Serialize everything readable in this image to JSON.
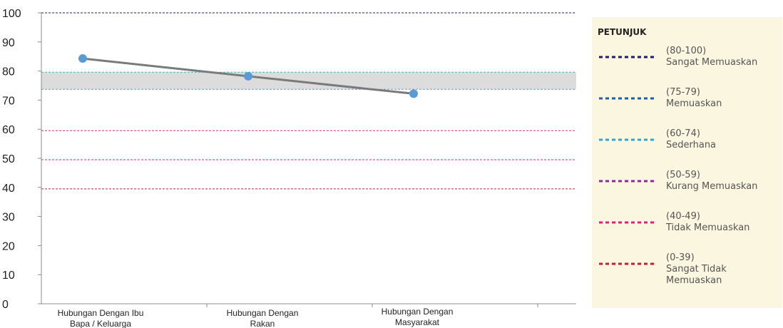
{
  "chart_data": {
    "type": "line",
    "title": "",
    "xlabel": "",
    "ylabel": "",
    "ylim": [
      0,
      100
    ],
    "yticks": [
      0,
      10,
      20,
      30,
      40,
      50,
      60,
      70,
      80,
      90,
      100
    ],
    "categories": [
      "Hubungan Dengan Ibu Bapa / Keluarga",
      "Hubungan Dengan Rakan",
      "Hubungan Dengan Masyarakat"
    ],
    "series": [
      {
        "values": [
          84.3,
          78.2,
          72.2
        ],
        "color": "#7a7a7a",
        "marker_color": "#5b9bd5"
      }
    ],
    "shaded_band": {
      "from": 73.7,
      "to": 79.6,
      "color": "#dcdcdc"
    },
    "threshold_lines": [
      {
        "value": 100,
        "color": "#1f1a6b"
      },
      {
        "value": 79.6,
        "color": "#3fb0c9"
      },
      {
        "value": 73.7,
        "color": "#3fb0c9"
      },
      {
        "value": 59.5,
        "color": "#d62d6f"
      },
      {
        "value": 49.5,
        "color": "#d62d6f"
      },
      {
        "value": 39.5,
        "color": "#c21f3a"
      }
    ]
  },
  "legend": {
    "title": "PETUNJUK",
    "items": [
      {
        "range": "(80-100)",
        "label": "Sangat Memuaskan",
        "color": "#1f1a6b"
      },
      {
        "range": "(75-79)",
        "label": "Memuaskan",
        "color": "#1f5f9e"
      },
      {
        "range": "(60-74)",
        "label": "Sederhana",
        "color": "#2aa7d6"
      },
      {
        "range": "(50-59)",
        "label": "Kurang Memuaskan",
        "color": "#8e2a9c"
      },
      {
        "range": "(40-49)",
        "label": "Tidak Memuaskan",
        "color": "#e0207a"
      },
      {
        "range": "(0-39)",
        "label": "Sangat Tidak Memuaskan",
        "color": "#c21f3a"
      }
    ]
  }
}
